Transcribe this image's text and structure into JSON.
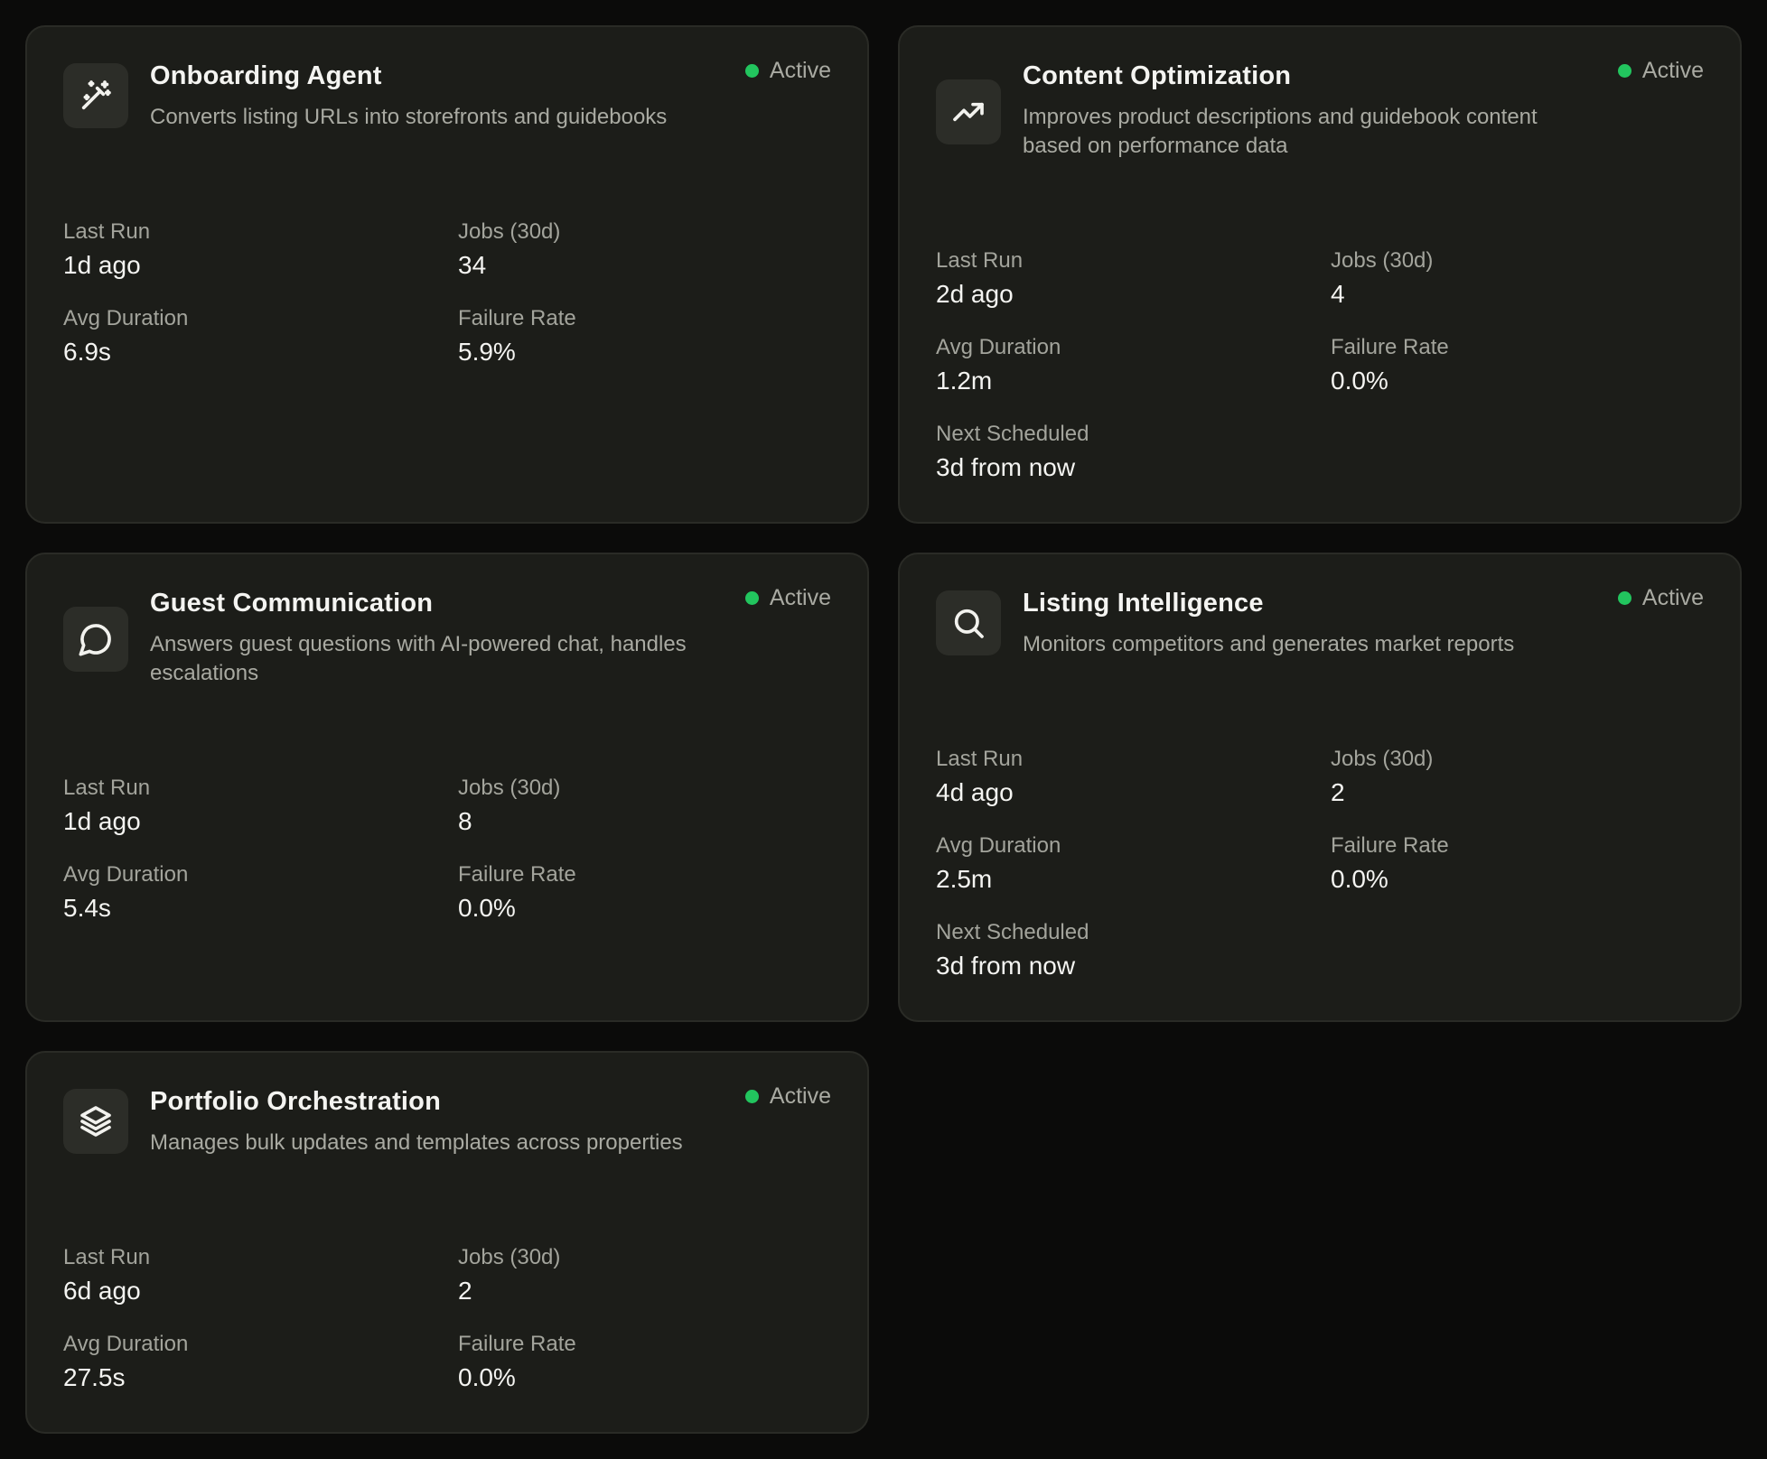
{
  "status_color": "#22c55e",
  "agents": [
    {
      "title": "Onboarding Agent",
      "description": "Converts listing URLs into storefronts and guidebooks",
      "icon": "magic-wand-icon",
      "status": "Active",
      "stats": {
        "last_run_label": "Last Run",
        "last_run": "1d ago",
        "jobs_label": "Jobs (30d)",
        "jobs": "34",
        "avg_duration_label": "Avg Duration",
        "avg_duration": "6.9s",
        "failure_rate_label": "Failure Rate",
        "failure_rate": "5.9%"
      }
    },
    {
      "title": "Content Optimization",
      "description": "Improves product descriptions and guidebook content based on performance data",
      "icon": "trending-up-icon",
      "status": "Active",
      "stats": {
        "last_run_label": "Last Run",
        "last_run": "2d ago",
        "jobs_label": "Jobs (30d)",
        "jobs": "4",
        "avg_duration_label": "Avg Duration",
        "avg_duration": "1.2m",
        "failure_rate_label": "Failure Rate",
        "failure_rate": "0.0%",
        "next_scheduled_label": "Next Scheduled",
        "next_scheduled": "3d from now"
      }
    },
    {
      "title": "Guest Communication",
      "description": "Answers guest questions with AI-powered chat, handles escalations",
      "icon": "chat-bubble-icon",
      "status": "Active",
      "stats": {
        "last_run_label": "Last Run",
        "last_run": "1d ago",
        "jobs_label": "Jobs (30d)",
        "jobs": "8",
        "avg_duration_label": "Avg Duration",
        "avg_duration": "5.4s",
        "failure_rate_label": "Failure Rate",
        "failure_rate": "0.0%"
      }
    },
    {
      "title": "Listing Intelligence",
      "description": "Monitors competitors and generates market reports",
      "icon": "search-icon",
      "status": "Active",
      "stats": {
        "last_run_label": "Last Run",
        "last_run": "4d ago",
        "jobs_label": "Jobs (30d)",
        "jobs": "2",
        "avg_duration_label": "Avg Duration",
        "avg_duration": "2.5m",
        "failure_rate_label": "Failure Rate",
        "failure_rate": "0.0%",
        "next_scheduled_label": "Next Scheduled",
        "next_scheduled": "3d from now"
      }
    },
    {
      "title": "Portfolio Orchestration",
      "description": "Manages bulk updates and templates across properties",
      "icon": "layers-icon",
      "status": "Active",
      "stats": {
        "last_run_label": "Last Run",
        "last_run": "6d ago",
        "jobs_label": "Jobs (30d)",
        "jobs": "2",
        "avg_duration_label": "Avg Duration",
        "avg_duration": "27.5s",
        "failure_rate_label": "Failure Rate",
        "failure_rate": "0.0%"
      }
    }
  ]
}
